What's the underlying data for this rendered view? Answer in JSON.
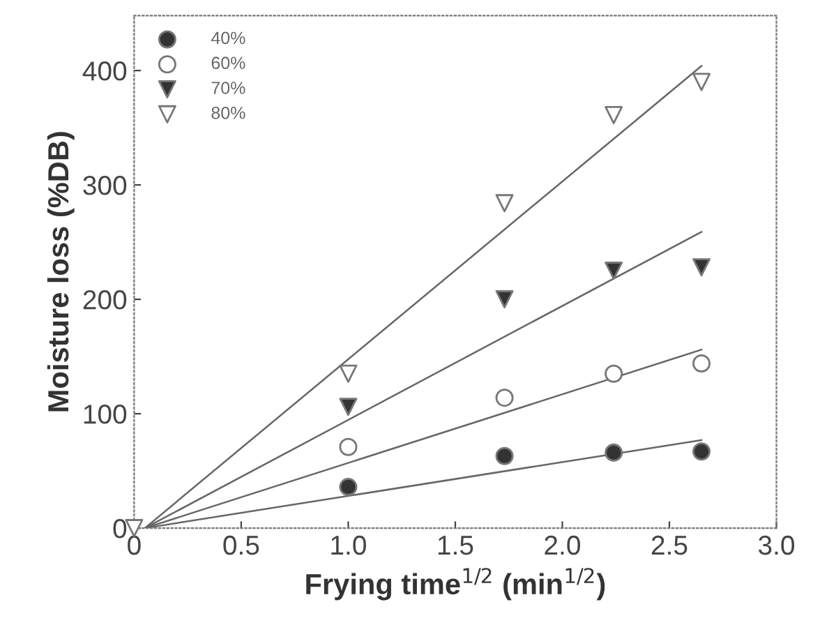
{
  "chart_data": {
    "type": "scatter",
    "xlabel": "Frying time$^{1/2}$ (min$^{1/2}$)",
    "ylabel": "Moisture loss (%DB)",
    "xlim": [
      0,
      3
    ],
    "ylim": [
      0,
      448
    ],
    "xticks": [
      0,
      0.5,
      {
        "value": 1,
        "label": "1.0"
      },
      1.5,
      {
        "value": 2,
        "label": "2.0"
      },
      2.5,
      {
        "value": 3,
        "label": "3.0"
      }
    ],
    "yticks": [
      0,
      100,
      200,
      300,
      400
    ],
    "grid": false,
    "legend": "top left",
    "series": [
      {
        "name": "40%",
        "marker": "circle",
        "color": "#333333",
        "x": [
          1.0,
          1.73,
          2.24,
          2.65
        ],
        "values": [
          36,
          63,
          66,
          67
        ]
      },
      {
        "name": "60%",
        "marker": "circle",
        "color": "#ffffff",
        "x": [
          1.0,
          1.73,
          2.24,
          2.65
        ],
        "values": [
          71,
          114,
          135,
          144
        ]
      },
      {
        "name": "70%",
        "marker": "triangle",
        "color": "#333333",
        "x": [
          1.0,
          1.73,
          2.24,
          2.65
        ],
        "values": [
          106,
          200,
          225,
          228
        ]
      },
      {
        "name": "80%",
        "marker": "triangle",
        "color": "#ffffff",
        "x": [
          0,
          1.0,
          1.73,
          2.24,
          2.65
        ],
        "values": [
          0,
          135,
          284,
          361,
          390
        ]
      },
      {
        "type": "line",
        "color": "#666666",
        "x": [
          0.05,
          2.65
        ],
        "values": [
          0,
          77
        ]
      },
      {
        "type": "line",
        "color": "#666666",
        "x": [
          0.05,
          2.65
        ],
        "values": [
          0,
          156
        ]
      },
      {
        "type": "line",
        "color": "#666666",
        "x": [
          0.05,
          2.65
        ],
        "values": [
          0,
          259
        ]
      },
      {
        "type": "line",
        "color": "#666666",
        "x": [
          0.05,
          2.65
        ],
        "values": [
          0,
          404
        ]
      }
    ]
  }
}
